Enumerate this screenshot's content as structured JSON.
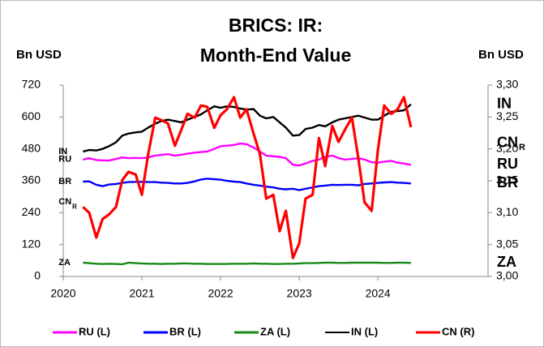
{
  "chart_data": {
    "type": "line",
    "title": [
      "BRICS: IR:",
      "Month-End Value"
    ],
    "y_label": "Bn USD",
    "y2_label": "Bn USD",
    "x": [
      2020.25,
      2020.33,
      2020.42,
      2020.5,
      2020.58,
      2020.67,
      2020.75,
      2020.83,
      2020.92,
      2021.0,
      2021.08,
      2021.17,
      2021.25,
      2021.33,
      2021.42,
      2021.5,
      2021.58,
      2021.67,
      2021.75,
      2021.83,
      2021.92,
      2022.0,
      2022.08,
      2022.17,
      2022.25,
      2022.33,
      2022.42,
      2022.5,
      2022.58,
      2022.67,
      2022.75,
      2022.83,
      2022.92,
      2023.0,
      2023.08,
      2023.17,
      2023.25,
      2023.33,
      2023.42,
      2023.5,
      2023.58,
      2023.67,
      2023.75,
      2023.83,
      2023.92,
      2024.0,
      2024.08,
      2024.17,
      2024.25,
      2024.33,
      2024.42
    ],
    "xlim": [
      2020,
      2025.4
    ],
    "xticks": [
      2020,
      2021,
      2022,
      2023,
      2024
    ],
    "ylim": [
      0,
      720
    ],
    "yticks": [
      0,
      120,
      240,
      360,
      480,
      600,
      720
    ],
    "y2lim": [
      3.0,
      3.3
    ],
    "y2ticks": [
      {
        "value": 3.0,
        "label": "3,00"
      },
      {
        "value": 3.05,
        "label": "3,05"
      },
      {
        "value": 3.1,
        "label": "3,10"
      },
      {
        "value": 3.15,
        "label": "3,15"
      },
      {
        "value": 3.2,
        "label": "3,20"
      },
      {
        "value": 3.25,
        "label": "3,25"
      },
      {
        "value": 3.3,
        "label": "3,30"
      }
    ],
    "legend": "bottom",
    "series": [
      {
        "name": "RU (L)",
        "label": "RU",
        "color": "#ff00ff",
        "values": [
          440,
          445,
          438,
          437,
          436,
          442,
          448,
          445,
          446,
          445,
          448,
          455,
          458,
          460,
          455,
          458,
          462,
          466,
          468,
          470,
          480,
          490,
          492,
          495,
          500,
          498,
          485,
          470,
          455,
          452,
          450,
          445,
          420,
          418,
          425,
          435,
          440,
          450,
          455,
          445,
          440,
          442,
          445,
          440,
          430,
          428,
          432,
          435,
          428,
          425,
          420
        ]
      },
      {
        "name": "BR (L)",
        "label": "BR",
        "color": "#0000ff",
        "values": [
          357,
          358,
          345,
          340,
          346,
          348,
          352,
          355,
          356,
          356,
          355,
          355,
          353,
          352,
          350,
          350,
          352,
          358,
          365,
          368,
          366,
          364,
          360,
          357,
          355,
          350,
          345,
          342,
          338,
          335,
          330,
          328,
          330,
          325,
          330,
          335,
          340,
          342,
          345,
          344,
          345,
          345,
          343,
          348,
          350,
          352,
          354,
          355,
          353,
          352,
          350
        ]
      },
      {
        "name": "ZA (L)",
        "label": "ZA",
        "color": "#1a8a1a",
        "values": [
          52,
          50,
          48,
          47,
          48,
          47,
          46,
          52,
          50,
          49,
          48,
          48,
          47,
          48,
          48,
          49,
          49,
          48,
          48,
          47,
          47,
          47,
          47,
          48,
          48,
          48,
          49,
          48,
          48,
          47,
          47,
          48,
          48,
          49,
          50,
          50,
          51,
          52,
          52,
          51,
          51,
          52,
          52,
          52,
          52,
          52,
          51,
          51,
          52,
          52,
          51
        ]
      },
      {
        "name": "IN (L)",
        "label": "IN",
        "color": "#000000",
        "values": [
          470,
          476,
          474,
          480,
          490,
          505,
          530,
          538,
          542,
          545,
          560,
          575,
          585,
          590,
          585,
          580,
          590,
          600,
          610,
          625,
          640,
          635,
          640,
          638,
          632,
          628,
          630,
          605,
          595,
          600,
          580,
          560,
          530,
          532,
          555,
          560,
          570,
          565,
          580,
          590,
          595,
          600,
          605,
          598,
          590,
          590,
          605,
          620,
          622,
          625,
          648
        ]
      },
      {
        "name": "CN (R)",
        "label": "CN",
        "label_sub": "R",
        "color": "#ff0000",
        "axis": "y2",
        "values": [
          3.109,
          3.1,
          3.061,
          3.09,
          3.097,
          3.109,
          3.151,
          3.164,
          3.16,
          3.128,
          3.192,
          3.249,
          3.245,
          3.24,
          3.205,
          3.23,
          3.255,
          3.249,
          3.268,
          3.266,
          3.233,
          3.253,
          3.262,
          3.281,
          3.249,
          3.262,
          3.224,
          3.192,
          3.122,
          3.128,
          3.071,
          3.103,
          3.029,
          3.052,
          3.122,
          3.128,
          3.217,
          3.173,
          3.236,
          3.211,
          3.23,
          3.249,
          3.186,
          3.116,
          3.103,
          3.198,
          3.268,
          3.255,
          3.262,
          3.281,
          3.234
        ]
      }
    ]
  }
}
